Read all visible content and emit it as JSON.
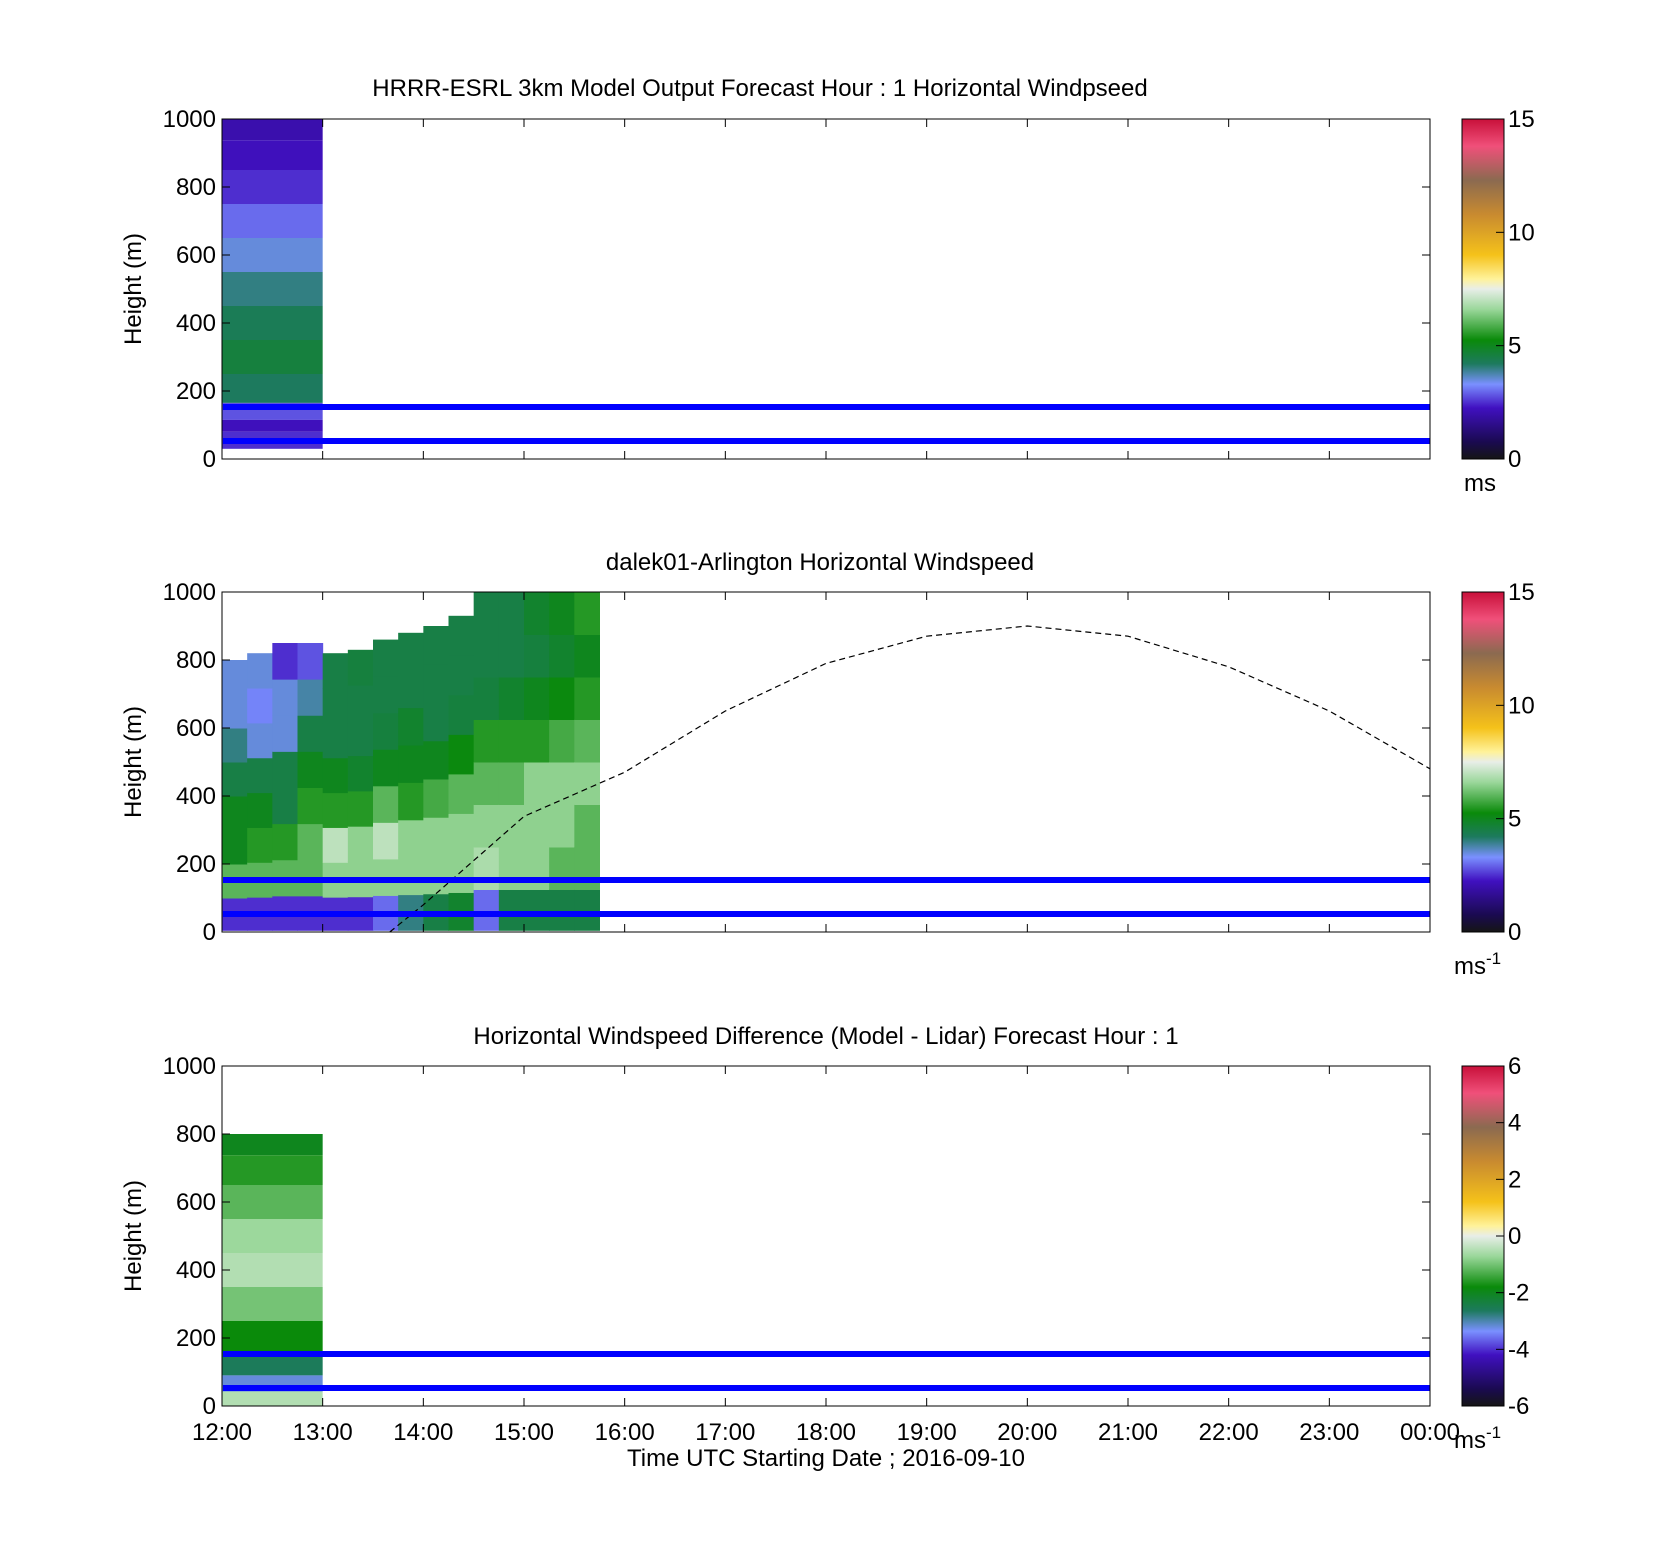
{
  "panels": [
    {
      "title": "HRRR-ESRL 3km Model Output   Forecast Hour : 1 Horizontal Windpseed",
      "ylabel": "Height (m)",
      "colorbar_unit": "ms",
      "colorbar_unit_sup": "",
      "colorbar_ticks": [
        "15",
        "10",
        "5",
        "0"
      ]
    },
    {
      "title": "dalek01-Arlington  Horizontal Windspeed",
      "ylabel": "Height (m)",
      "colorbar_unit": "ms",
      "colorbar_unit_sup": "-1",
      "colorbar_ticks": [
        "15",
        "10",
        "5",
        "0"
      ]
    },
    {
      "title": "Horizontal Windspeed Difference (Model - Lidar) Forecast Hour : 1",
      "ylabel": "Height (m)",
      "colorbar_unit": "ms",
      "colorbar_unit_sup": "-1",
      "colorbar_ticks": [
        "6",
        "4",
        "2",
        "0",
        "-2",
        "-4",
        "-6"
      ]
    }
  ],
  "yticks": [
    "1000",
    "800",
    "600",
    "400",
    "200",
    "0"
  ],
  "xticks": [
    "12:00",
    "13:00",
    "14:00",
    "15:00",
    "16:00",
    "17:00",
    "18:00",
    "19:00",
    "20:00",
    "21:00",
    "22:00",
    "23:00",
    "00:00"
  ],
  "xlabel": "Time UTC  Starting Date ; 2016-09-10",
  "chart_data": [
    {
      "type": "heatmap",
      "title": "HRRR-ESRL 3km Model Output   Forecast Hour : 1 Horizontal Windpseed",
      "ylabel": "Height (m)",
      "xlim": [
        "12:00",
        "00:00"
      ],
      "ylim": [
        0,
        1000
      ],
      "colorbar": {
        "min": 0,
        "max": 15,
        "unit": "ms"
      },
      "data_extent_time": [
        "12:00",
        "13:00"
      ],
      "profile": [
        {
          "height": 975,
          "value": 2.0
        },
        {
          "height": 900,
          "value": 2.2
        },
        {
          "height": 800,
          "value": 2.5
        },
        {
          "height": 700,
          "value": 3.0
        },
        {
          "height": 600,
          "value": 3.5
        },
        {
          "height": 500,
          "value": 4.0
        },
        {
          "height": 400,
          "value": 4.3
        },
        {
          "height": 300,
          "value": 4.6
        },
        {
          "height": 200,
          "value": 4.2
        },
        {
          "height": 130,
          "value": 2.8
        },
        {
          "height": 100,
          "value": 2.2
        },
        {
          "height": 60,
          "value": 2.5
        }
      ],
      "reference_lines_m": [
        150,
        50
      ]
    },
    {
      "type": "heatmap",
      "title": "dalek01-Arlington  Horizontal Windspeed",
      "ylabel": "Height (m)",
      "xlim": [
        "12:00",
        "00:00"
      ],
      "ylim": [
        0,
        1000
      ],
      "colorbar": {
        "min": 0,
        "max": 15,
        "unit": "ms-1"
      },
      "data_extent_time": [
        "12:00",
        "15:50"
      ],
      "columns": [
        {
          "time": "12:00",
          "top": 800,
          "speeds": [
            2.5,
            6,
            5,
            5,
            4.5,
            4,
            3.5,
            3.5
          ]
        },
        {
          "time": "12:15",
          "top": 820,
          "speeds": [
            2.5,
            6,
            5.5,
            5,
            4.5,
            3.5,
            3.2,
            3.5
          ]
        },
        {
          "time": "12:30",
          "top": 850,
          "speeds": [
            2.5,
            6,
            5.5,
            4.5,
            4.5,
            3.5,
            3.5,
            2.5
          ]
        },
        {
          "time": "12:45",
          "top": 850,
          "speeds": [
            2.5,
            6,
            6,
            5.5,
            5,
            4.5,
            3.8,
            2.8
          ]
        },
        {
          "time": "13:00",
          "top": 820,
          "speeds": [
            2.5,
            6.5,
            7,
            5.5,
            5,
            4.5,
            4.5,
            4.5
          ]
        },
        {
          "time": "13:15",
          "top": 830,
          "speeds": [
            2.5,
            6.5,
            6.5,
            5.5,
            4.8,
            4.5,
            4.5,
            4.6
          ]
        },
        {
          "time": "13:30",
          "top": 860,
          "speeds": [
            3,
            6.5,
            7,
            6,
            5,
            4.6,
            4.5,
            4.5
          ]
        },
        {
          "time": "13:45",
          "top": 880,
          "speeds": [
            4,
            6.5,
            6.5,
            5.5,
            5,
            4.8,
            4.5,
            4.5
          ]
        },
        {
          "time": "14:00",
          "top": 900,
          "speeds": [
            4.5,
            6.5,
            6.5,
            5.8,
            5,
            4.5,
            4.5,
            4.5
          ]
        },
        {
          "time": "14:15",
          "top": 930,
          "speeds": [
            4.8,
            6.5,
            6.5,
            6,
            5.2,
            4.6,
            4.5,
            4.5
          ]
        },
        {
          "time": "14:30",
          "top": 1000,
          "speeds": [
            3,
            6.8,
            6.5,
            6,
            5.5,
            4.6,
            4.5,
            4.5
          ]
        },
        {
          "time": "14:45",
          "top": 1000,
          "speeds": [
            4.5,
            6.5,
            6.5,
            6,
            5.5,
            4.8,
            4.5,
            4.5
          ]
        },
        {
          "time": "15:00",
          "top": 1000,
          "speeds": [
            4.5,
            6.5,
            6.5,
            6.5,
            5.5,
            5,
            4.6,
            4.8
          ]
        },
        {
          "time": "15:15",
          "top": 1000,
          "speeds": [
            4.5,
            6,
            6.5,
            6.5,
            5.8,
            5.2,
            4.8,
            5
          ]
        },
        {
          "time": "15:30",
          "top": 1000,
          "speeds": [
            4.5,
            6,
            6,
            6.5,
            6,
            5.5,
            5,
            5.5
          ]
        }
      ],
      "overlay_curve": {
        "style": "dashed",
        "points": [
          {
            "time": "13:40",
            "height": 0
          },
          {
            "time": "14:00",
            "height": 80
          },
          {
            "time": "15:00",
            "height": 340
          },
          {
            "time": "16:00",
            "height": 470
          },
          {
            "time": "17:00",
            "height": 650
          },
          {
            "time": "18:00",
            "height": 790
          },
          {
            "time": "19:00",
            "height": 870
          },
          {
            "time": "20:00",
            "height": 900
          },
          {
            "time": "21:00",
            "height": 870
          },
          {
            "time": "22:00",
            "height": 780
          },
          {
            "time": "23:00",
            "height": 650
          },
          {
            "time": "00:00",
            "height": 480
          }
        ]
      },
      "reference_lines_m": [
        150,
        50
      ]
    },
    {
      "type": "heatmap",
      "title": "Horizontal Windspeed Difference (Model - Lidar) Forecast Hour : 1",
      "ylabel": "Height (m)",
      "xlabel": "Time UTC  Starting Date ; 2016-09-10",
      "xlim": [
        "12:00",
        "00:00"
      ],
      "ylim": [
        0,
        1000
      ],
      "colorbar": {
        "min": -6,
        "max": 6,
        "unit": "ms-1"
      },
      "data_extent_time": [
        "12:00",
        "13:00"
      ],
      "profile": [
        {
          "height": 775,
          "value": -2.0
        },
        {
          "height": 700,
          "value": -1.6
        },
        {
          "height": 600,
          "value": -1.2
        },
        {
          "height": 500,
          "value": -0.7
        },
        {
          "height": 400,
          "value": -0.5
        },
        {
          "height": 300,
          "value": -1.0
        },
        {
          "height": 200,
          "value": -1.8
        },
        {
          "height": 120,
          "value": -2.6
        },
        {
          "height": 60,
          "value": -3.2
        },
        {
          "height": 25,
          "value": -0.5
        }
      ],
      "reference_lines_m": [
        150,
        50
      ]
    }
  ],
  "colors": {
    "reference_line": "#0000ff",
    "axes": "#000000",
    "curve": "#000000"
  }
}
